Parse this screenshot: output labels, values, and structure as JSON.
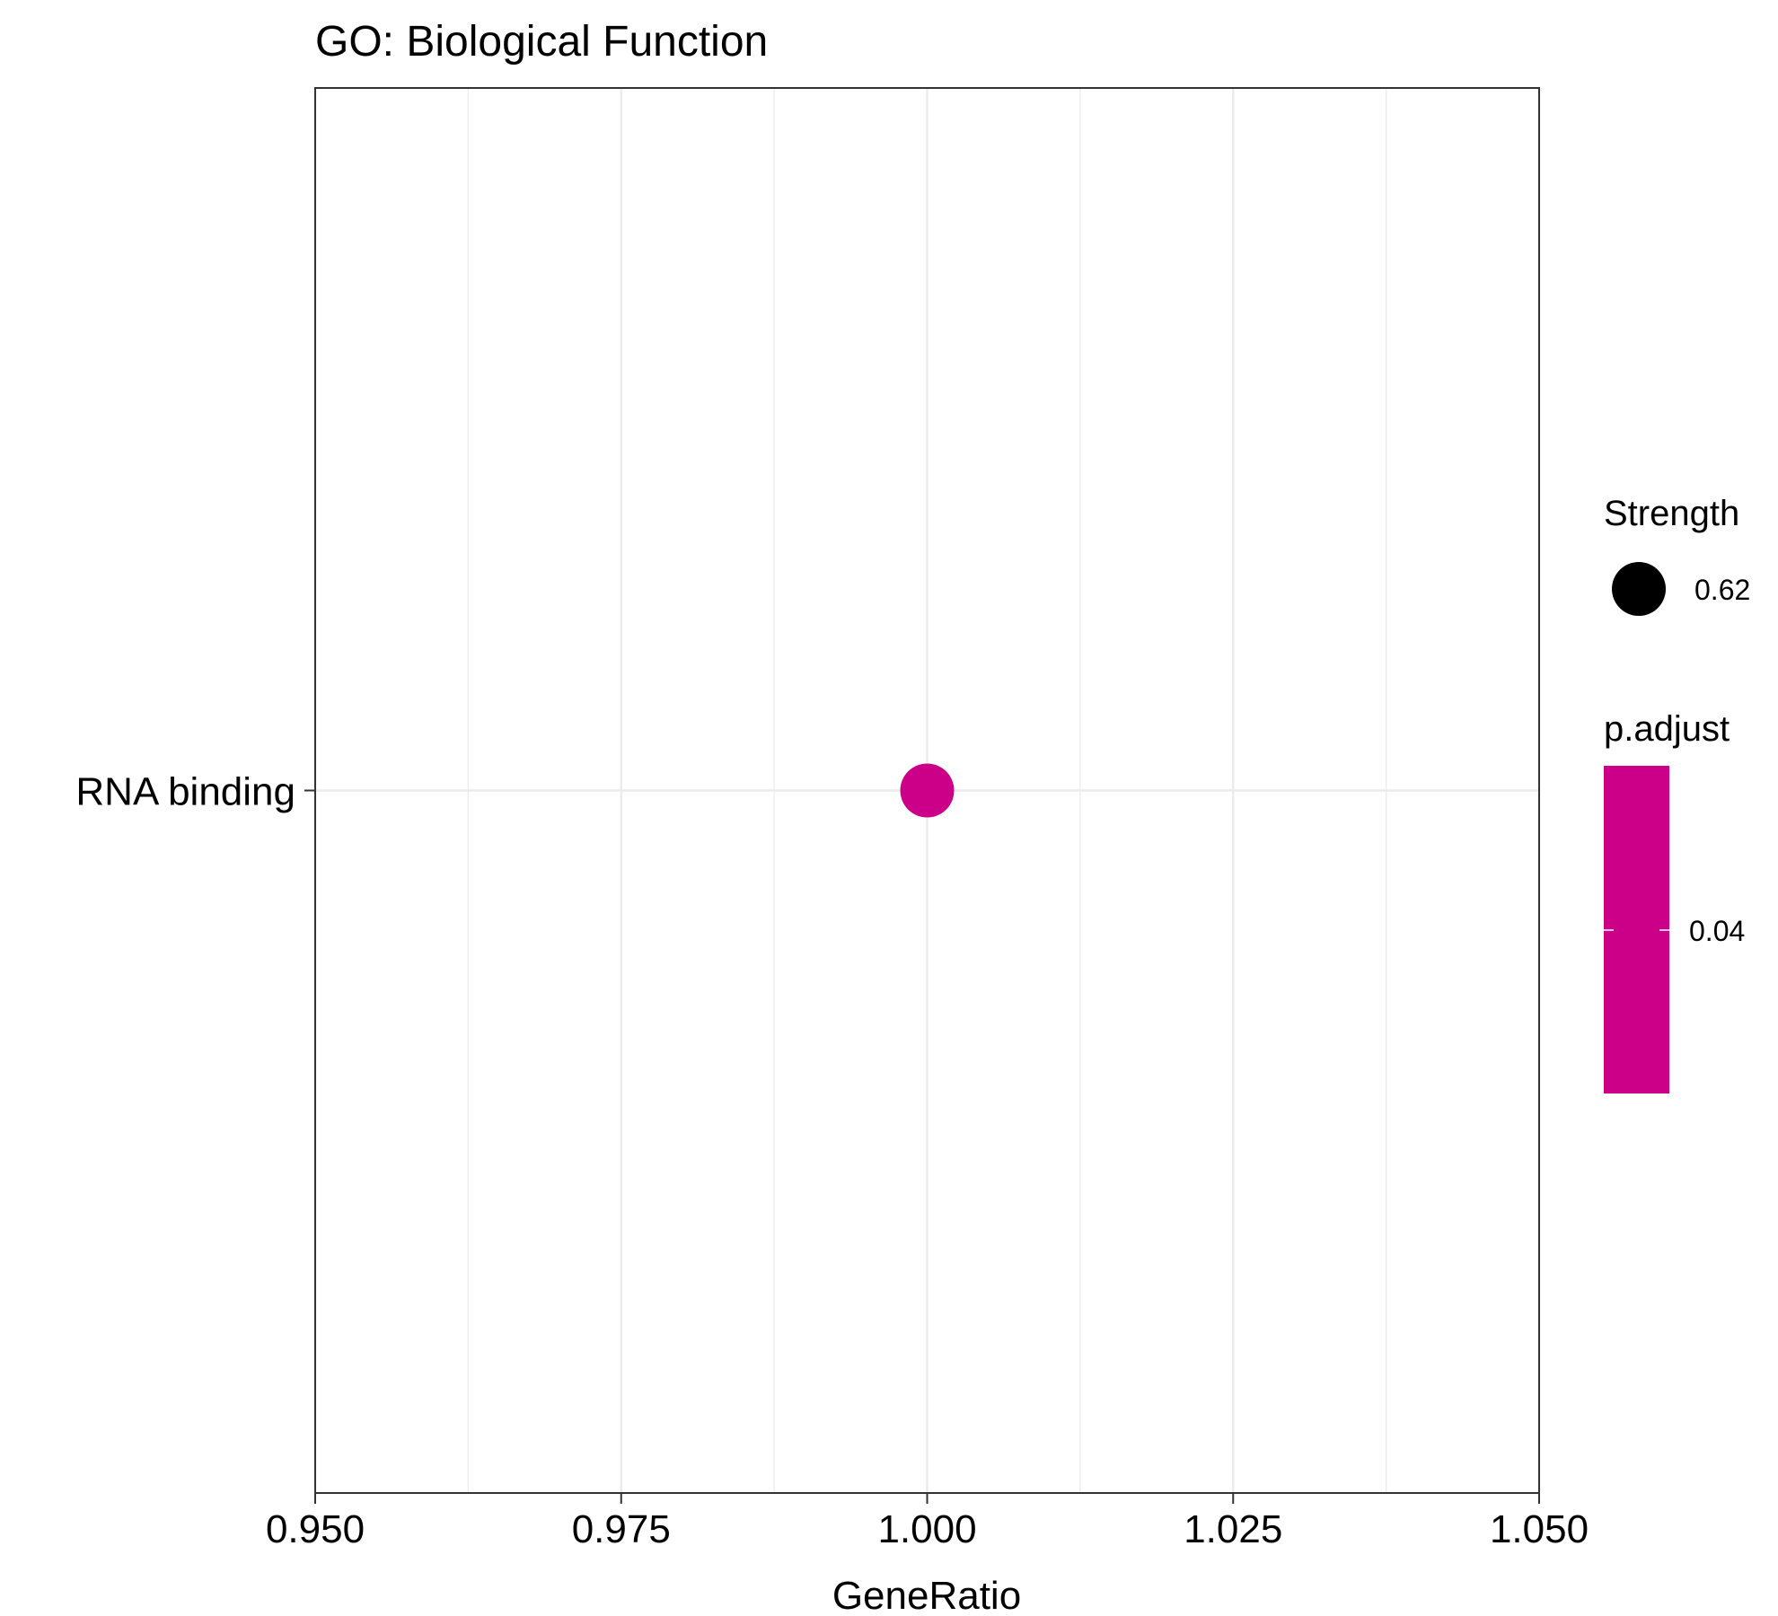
{
  "chart_data": {
    "type": "scatter",
    "title": "GO: Biological Function",
    "xlabel": "GeneRatio",
    "ylabel": "",
    "xlim": [
      0.95,
      1.05
    ],
    "x_ticks": [
      "0.950",
      "0.975",
      "1.000",
      "1.025",
      "1.050"
    ],
    "categories": [
      "RNA binding"
    ],
    "points": [
      {
        "category": "RNA binding",
        "x": 1.0,
        "strength": 0.62,
        "p_adjust": 0.04
      }
    ],
    "grid": true,
    "legend_position": "right",
    "legends": {
      "size": {
        "title": "Strength",
        "entries": [
          {
            "value": 0.62,
            "label": "0.62"
          }
        ]
      },
      "color": {
        "title": "p.adjust",
        "ticks": [
          {
            "value": 0.04,
            "label": "0.04"
          }
        ]
      }
    },
    "colors": {
      "point": "#cc0088",
      "size_key": "#000000",
      "gridline": "#ebebeb",
      "panel_border": "#333333"
    }
  }
}
